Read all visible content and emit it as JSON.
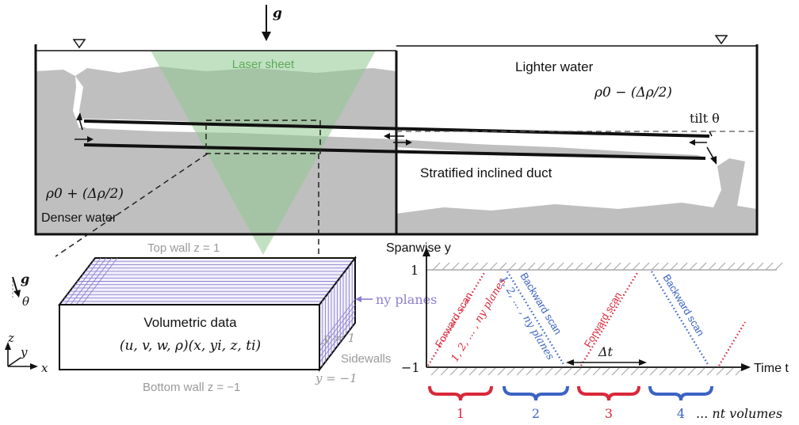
{
  "tank": {
    "gravity": "g",
    "laser_sheet": "Laser sheet",
    "lighter_water": "Lighter water",
    "rho_light": "ρ0 − (Δρ/2)",
    "tilt": "tilt θ",
    "duct_label": "Stratified inclined duct",
    "rho_dense": "ρ0 + (Δρ/2)",
    "denser_water": "Denser water"
  },
  "box": {
    "top_wall": "Top wall z = 1",
    "bottom_wall": "Bottom wall z = −1",
    "volumetric": "Volumetric data",
    "formula": "(u, v, w, ρ)(x, yi, z, ti)",
    "ny_planes": "ny planes",
    "y_plus": "y = 1",
    "y_minus": "y = −1",
    "sidewalls": "Sidewalls",
    "axis_x": "x",
    "axis_y": "y",
    "axis_z": "z",
    "g_label": "g",
    "theta": "θ"
  },
  "timing": {
    "spanwise": "Spanwise y",
    "top_tick": "1",
    "bottom_tick": "−1",
    "time_axis": "Time t",
    "dt": "Δt",
    "forward_scan": "Forward scan",
    "backward_scan": "Backward scan",
    "forward_planes": "1, 2, ... , ny planes",
    "backward_planes": "1, 2, ... , ny planes",
    "volume_numbers": [
      "1",
      "2",
      "3",
      "4"
    ],
    "volumes_label": "... nt volumes"
  },
  "colors": {
    "water_fill": "#bfbfbf",
    "laser": "#8fc98f",
    "forward": "#d9283a",
    "backward": "#3b63c4",
    "box_lines": "#8b7fd1",
    "grey_text": "#999999"
  }
}
